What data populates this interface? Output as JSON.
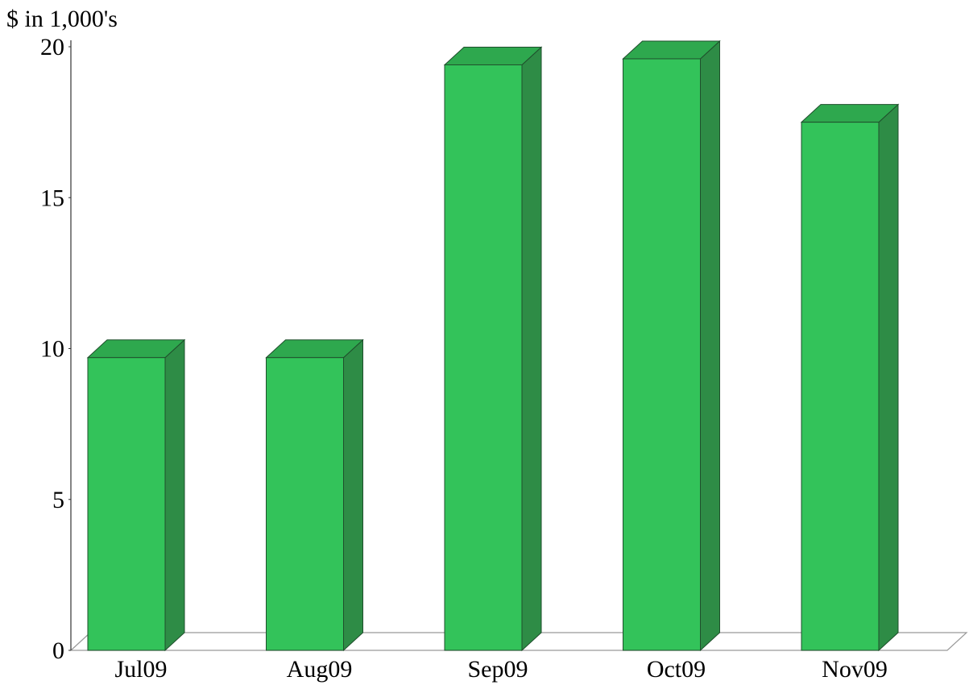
{
  "chart_data": {
    "type": "bar",
    "title": "",
    "ylabel": "$ in 1,000's",
    "xlabel": "",
    "categories": [
      "Jul09",
      "Aug09",
      "Sep09",
      "Oct09",
      "Nov09"
    ],
    "series": [
      {
        "values": [
          9.7,
          9.7,
          19.4,
          19.6,
          17.5
        ]
      }
    ],
    "yticks": [
      "0",
      "5",
      "10",
      "15",
      "20"
    ],
    "ylim": [
      0,
      20
    ],
    "grid": false,
    "style": "3d",
    "colors": {
      "bar_front": "#33c35a",
      "bar_top": "#2ea84e",
      "bar_side": "#2e8c46",
      "outline": "#1f4f2c",
      "axis": "#333333",
      "floor": "#999999"
    }
  }
}
